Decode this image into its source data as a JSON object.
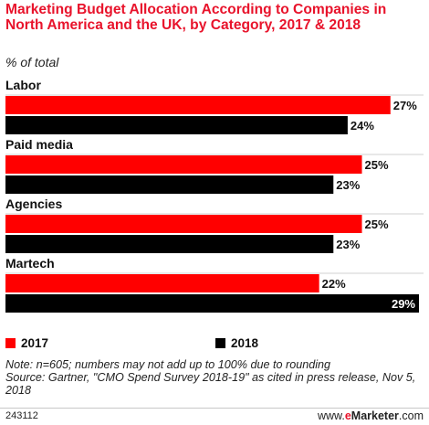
{
  "title": "Marketing Budget Allocation According to Companies in North America and the UK, by Category, 2017 & 2018",
  "subtitle": "% of total",
  "legend": [
    {
      "label": "2017",
      "color": "#ff0000"
    },
    {
      "label": "2018",
      "color": "#000000"
    }
  ],
  "note": "Note: n=605; numbers may not add up to 100% due to rounding",
  "source": "Source: Gartner, \"CMO Spend Survey 2018-19\" as cited in press release, Nov 5, 2018",
  "footer": {
    "id": "243112",
    "brand_prefix": "www.",
    "brand_e": "e",
    "brand_name": "Marketer",
    "brand_suffix": ".com"
  },
  "chart_data": {
    "type": "bar",
    "orientation": "horizontal",
    "categories": [
      "Labor",
      "Paid media",
      "Agencies",
      "Martech"
    ],
    "series": [
      {
        "name": "2017",
        "color": "#ff0000",
        "values": [
          27,
          25,
          25,
          22
        ]
      },
      {
        "name": "2018",
        "color": "#000000",
        "values": [
          24,
          23,
          23,
          29
        ]
      }
    ],
    "value_suffix": "%",
    "xlim": [
      0,
      29
    ],
    "grid": false,
    "legend_position": "bottom"
  }
}
